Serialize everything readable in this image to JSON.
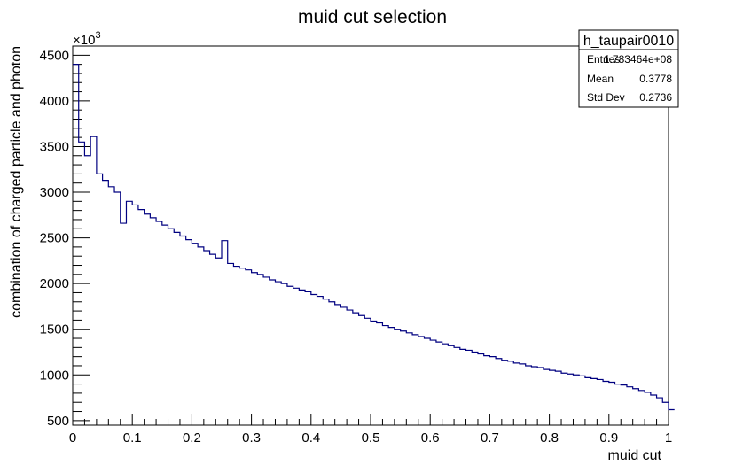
{
  "chart_data": {
    "type": "histogram",
    "title": "muid cut selection",
    "xlabel": "muid cut",
    "ylabel": "combination of charged particle and photon",
    "y_multiplier": "×10",
    "y_multiplier_exp": "3",
    "xlim": [
      0,
      1
    ],
    "ylim": [
      450,
      4600
    ],
    "x_ticks": [
      0,
      0.1,
      0.2,
      0.3,
      0.4,
      0.5,
      0.6,
      0.7,
      0.8,
      0.9,
      1
    ],
    "x_tick_labels": [
      "0",
      "0.1",
      "0.2",
      "0.3",
      "0.4",
      "0.5",
      "0.6",
      "0.7",
      "0.8",
      "0.9",
      "1"
    ],
    "y_ticks": [
      500,
      1000,
      1500,
      2000,
      2500,
      3000,
      3500,
      4000,
      4500
    ],
    "y_tick_labels": [
      "500",
      "1000",
      "1500",
      "2000",
      "2500",
      "3000",
      "3500",
      "4000",
      "4500"
    ],
    "bin_edges_start": 0,
    "bin_width": 0.01,
    "line_color": "#000080",
    "values": [
      4400,
      3550,
      3400,
      3610,
      3200,
      3130,
      3060,
      3000,
      2660,
      2900,
      2860,
      2810,
      2760,
      2720,
      2680,
      2640,
      2600,
      2560,
      2520,
      2480,
      2440,
      2400,
      2360,
      2320,
      2280,
      2470,
      2220,
      2190,
      2170,
      2150,
      2120,
      2100,
      2070,
      2040,
      2020,
      2000,
      1970,
      1950,
      1930,
      1910,
      1880,
      1860,
      1830,
      1800,
      1770,
      1740,
      1710,
      1680,
      1650,
      1620,
      1590,
      1570,
      1540,
      1520,
      1500,
      1480,
      1460,
      1440,
      1420,
      1400,
      1380,
      1360,
      1340,
      1320,
      1300,
      1280,
      1270,
      1250,
      1230,
      1210,
      1200,
      1180,
      1160,
      1150,
      1130,
      1120,
      1100,
      1090,
      1080,
      1060,
      1050,
      1040,
      1020,
      1010,
      1000,
      990,
      970,
      960,
      950,
      930,
      920,
      900,
      890,
      870,
      850,
      830,
      810,
      780,
      750,
      700,
      620
    ],
    "stats_box": {
      "name": "h_taupair0010",
      "rows": [
        {
          "label": "Entries",
          "value": "1.783464e+08"
        },
        {
          "label": "Mean",
          "value": "0.3778"
        },
        {
          "label": "Std Dev",
          "value": "0.2736"
        }
      ]
    }
  }
}
